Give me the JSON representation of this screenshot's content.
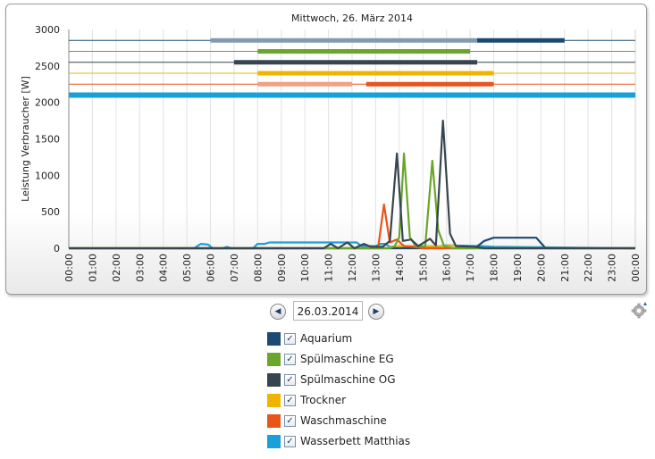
{
  "chart_data": {
    "type": "line",
    "title": "Mittwoch, 26. März 2014",
    "ylabel": "Leistung Verbraucher [W]",
    "xlabel": "",
    "ylim": [
      0,
      3000
    ],
    "yticks": [
      "0",
      "500",
      "1000",
      "1500",
      "2000",
      "2500",
      "3000"
    ],
    "xticks": [
      "00:00",
      "01:00",
      "02:00",
      "03:00",
      "04:00",
      "05:00",
      "06:00",
      "07:00",
      "08:00",
      "09:00",
      "10:00",
      "11:00",
      "12:00",
      "13:00",
      "14:00",
      "15:00",
      "16:00",
      "17:00",
      "18:00",
      "19:00",
      "20:00",
      "21:00",
      "22:00",
      "23:00",
      "00:00"
    ],
    "grid": "vertical",
    "series": [
      {
        "name": "Aquarium",
        "color": "#1b4a72",
        "points": [
          [
            0,
            0
          ],
          [
            17.2,
            0
          ],
          [
            17.6,
            100
          ],
          [
            18,
            145
          ],
          [
            19.8,
            145
          ],
          [
            20.2,
            0
          ],
          [
            24,
            0
          ]
        ]
      },
      {
        "name": "Spülmaschine EG",
        "color": "#6aa52c",
        "points": [
          [
            0,
            0
          ],
          [
            13.6,
            0
          ],
          [
            13.8,
            30
          ],
          [
            14,
            150
          ],
          [
            14.2,
            1300
          ],
          [
            14.45,
            150
          ],
          [
            14.7,
            30
          ],
          [
            15.1,
            30
          ],
          [
            15.4,
            1200
          ],
          [
            15.65,
            250
          ],
          [
            15.9,
            30
          ],
          [
            16.3,
            0
          ],
          [
            24,
            0
          ]
        ]
      },
      {
        "name": "Spülmaschine OG",
        "color": "#36454f",
        "points": [
          [
            0,
            0
          ],
          [
            10.8,
            0
          ],
          [
            11.1,
            60
          ],
          [
            11.4,
            0
          ],
          [
            11.8,
            80
          ],
          [
            12.1,
            0
          ],
          [
            12.5,
            60
          ],
          [
            12.8,
            20
          ],
          [
            13.3,
            20
          ],
          [
            13.6,
            100
          ],
          [
            13.9,
            1300
          ],
          [
            14.15,
            100
          ],
          [
            14.5,
            120
          ],
          [
            14.8,
            30
          ],
          [
            15.3,
            130
          ],
          [
            15.55,
            40
          ],
          [
            15.85,
            1750
          ],
          [
            16.15,
            200
          ],
          [
            16.4,
            30
          ],
          [
            17.2,
            20
          ],
          [
            17.6,
            0
          ],
          [
            24,
            0
          ]
        ]
      },
      {
        "name": "Trockner",
        "color": "#f0b400",
        "points": [
          [
            0,
            0
          ],
          [
            13.5,
            0
          ],
          [
            13.8,
            30
          ],
          [
            15.8,
            30
          ],
          [
            16.3,
            40
          ],
          [
            17.3,
            0
          ],
          [
            24,
            0
          ]
        ]
      },
      {
        "name": "Waschmaschine",
        "color": "#e8541a",
        "points": [
          [
            0,
            0
          ],
          [
            13.1,
            0
          ],
          [
            13.35,
            600
          ],
          [
            13.6,
            80
          ],
          [
            13.9,
            120
          ],
          [
            14.2,
            30
          ],
          [
            14.6,
            20
          ],
          [
            15,
            0
          ],
          [
            24,
            0
          ]
        ]
      },
      {
        "name": "Wasserbett Matthias",
        "color": "#1aa0d8",
        "points": [
          [
            0,
            0
          ],
          [
            5.3,
            0
          ],
          [
            5.6,
            60
          ],
          [
            5.9,
            50
          ],
          [
            6.1,
            0
          ],
          [
            6.5,
            0
          ],
          [
            6.7,
            20
          ],
          [
            6.9,
            0
          ],
          [
            7.8,
            0
          ],
          [
            8,
            60
          ],
          [
            8.3,
            60
          ],
          [
            8.5,
            80
          ],
          [
            11.8,
            80
          ],
          [
            12.2,
            80
          ],
          [
            12.4,
            30
          ],
          [
            13,
            30
          ],
          [
            13.2,
            60
          ],
          [
            13.4,
            60
          ],
          [
            13.6,
            20
          ],
          [
            15.5,
            20
          ],
          [
            16,
            40
          ],
          [
            17.5,
            30
          ],
          [
            18,
            20
          ],
          [
            24,
            0
          ]
        ]
      }
    ],
    "timelines": [
      {
        "name": "Aquarium",
        "color": "#1b4a72",
        "y": 2850,
        "segments": [
          [
            6,
            17.3,
            "light"
          ],
          [
            17.3,
            21,
            "dark"
          ]
        ]
      },
      {
        "name": "Spülmaschine EG",
        "color": "#6aa52c",
        "y": 2700,
        "segments": [
          [
            8,
            17,
            "dark"
          ]
        ]
      },
      {
        "name": "Spülmaschine OG",
        "color": "#36454f",
        "y": 2550,
        "segments": [
          [
            7,
            17.3,
            "dark"
          ]
        ]
      },
      {
        "name": "Trockner",
        "color": "#f0b400",
        "y": 2400,
        "segments": [
          [
            8,
            18,
            "dark"
          ]
        ]
      },
      {
        "name": "Waschmaschine",
        "color": "#e8541a",
        "y": 2250,
        "segments": [
          [
            8,
            12,
            "light"
          ],
          [
            12.6,
            18,
            "dark"
          ]
        ]
      },
      {
        "name": "Wasserbett Matthias",
        "color": "#1aa0d8",
        "y": 2100,
        "segments": [
          [
            0,
            24,
            "dark"
          ]
        ]
      }
    ]
  },
  "date_nav": {
    "date": "26.03.2014",
    "prev_icon": "triangle-left-icon",
    "next_icon": "triangle-right-icon"
  },
  "legend": {
    "items": [
      {
        "label": "Aquarium",
        "color": "#1b4a72"
      },
      {
        "label": "Spülmaschine EG",
        "color": "#6aa52c"
      },
      {
        "label": "Spülmaschine OG",
        "color": "#36454f"
      },
      {
        "label": "Trockner",
        "color": "#f0b400"
      },
      {
        "label": "Waschmaschine",
        "color": "#e8541a"
      },
      {
        "label": "Wasserbett Matthias",
        "color": "#1aa0d8"
      }
    ]
  },
  "settings_icon": "gear-icon"
}
